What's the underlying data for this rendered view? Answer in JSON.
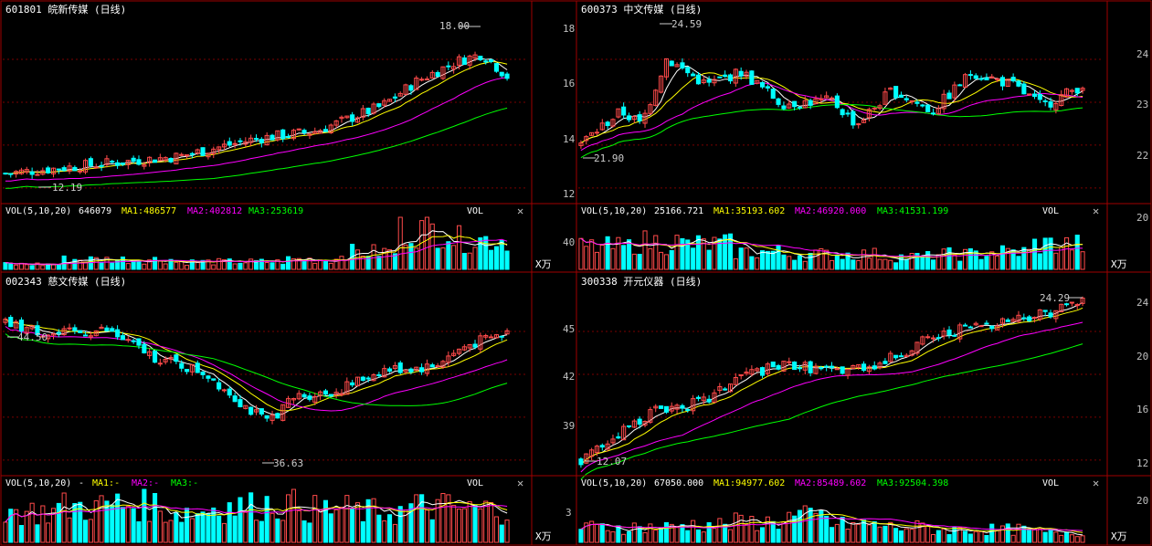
{
  "colors": {
    "background": "#000000",
    "frame": "#a00000",
    "grid": "#7a0000",
    "up": "#ff4a4a",
    "down": "#00ffff",
    "ma5": "#ffffff",
    "ma10": "#ffff00",
    "ma20": "#ff00ff",
    "ma30": "#00ff00",
    "text": "#ffffff",
    "axis_text": "#c0c0c0",
    "close": "#c0c0c0"
  },
  "common": {
    "vol_tag": "VOL",
    "close_symbol": "✕",
    "unit_label": "X万",
    "vol_prefix": "VOL(5,10,20)"
  },
  "chart_data": [
    {
      "type": "candlestick",
      "code": "601801",
      "name": "皖新传媒",
      "period": "(日线)",
      "title": "601801  皖新传媒  (日线)",
      "ylim": [
        11.4,
        18.8
      ],
      "right_ticks": [],
      "high_label": "18.00",
      "low_label": "12.19",
      "volume": {
        "latest": "646079",
        "ma1": "MA1:486577",
        "ma2": "MA2:402812",
        "ma3": "MA3:253619",
        "ylim": [
          0,
          20
        ],
        "ticks": []
      }
    },
    {
      "type": "candlestick",
      "code": "600373",
      "name": "中文传媒",
      "period": "(日线)",
      "title": "600373  中文传媒  (日线)",
      "ylim": [
        11.6,
        18.6
      ],
      "left_ticks": [
        "18",
        "16",
        "14",
        "12"
      ],
      "right_ticks": [
        "24",
        "23",
        "22"
      ],
      "high_label": "24.59",
      "low_label": "21.90",
      "volume": {
        "latest": "25166.721",
        "ma1": "MA1:35193.602",
        "ma2": "MA2:46920.000",
        "ma3": "MA3:41531.199",
        "ylim": [
          0,
          60
        ],
        "left_ticks": [
          "40"
        ],
        "right_ticks": [
          "20"
        ]
      }
    },
    {
      "type": "candlestick",
      "code": "002343",
      "name": "慈文传媒",
      "period": "(日线)",
      "title": "002343  慈文传媒  (日线)",
      "ylim": [
        34.5,
        46.5
      ],
      "right_ticks": [],
      "high_label": "44.50",
      "low_label": "36.63",
      "volume": {
        "latest": "-",
        "ma1": "MA1:-",
        "ma2": "MA2:-",
        "ma3": "MA3:-",
        "ylim": [
          0,
          5
        ],
        "left_ticks": [
          "3"
        ],
        "right_ticks": []
      }
    },
    {
      "type": "candlestick",
      "code": "300338",
      "name": "开元仪器",
      "period": "(日线)",
      "title": "300338  开元仪器  (日线)",
      "ylim": [
        36.2,
        48.6
      ],
      "left_ticks": [
        "45",
        "42",
        "39"
      ],
      "right_ticks": [
        "24",
        "20",
        "16",
        "12"
      ],
      "high_label": "24.29",
      "low_label": "12.07",
      "volume": {
        "latest": "67050.000",
        "ma1": "MA1:94977.602",
        "ma2": "MA2:85489.602",
        "ma3": "MA3:92504.398",
        "ylim": [
          0,
          30
        ],
        "left_ticks": [],
        "right_ticks": [
          "20"
        ]
      }
    }
  ]
}
